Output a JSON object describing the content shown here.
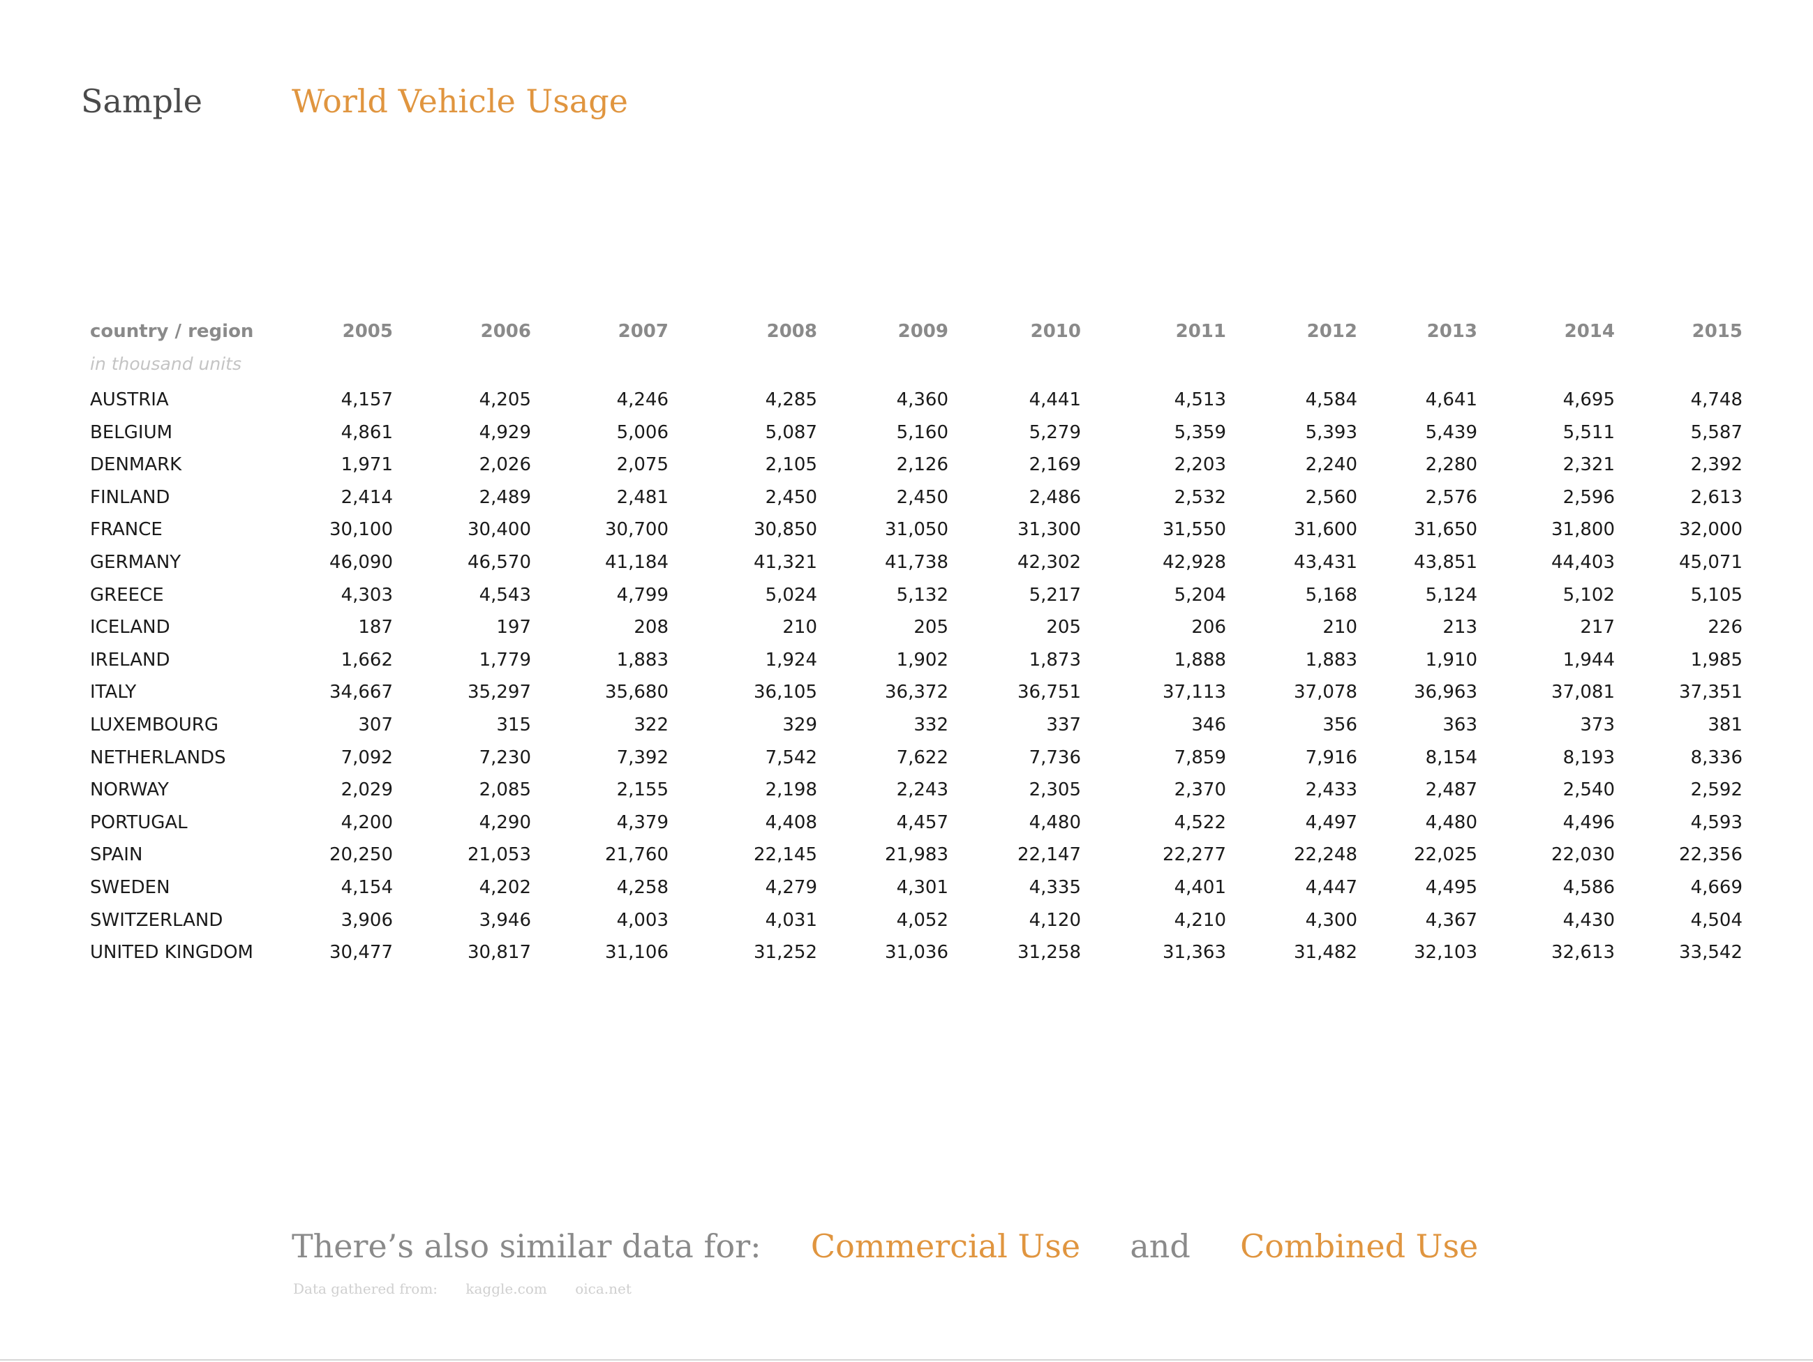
{
  "header": {
    "sample": "Sample",
    "title": "World Vehicle Usage"
  },
  "table": {
    "country_header": "country / region",
    "units": "in thousand units",
    "years": [
      "2005",
      "2006",
      "2007",
      "2008",
      "2009",
      "2010",
      "2011",
      "2012",
      "2013",
      "2014",
      "2015"
    ],
    "rows": [
      {
        "country": "AUSTRIA",
        "values": [
          "4,157",
          "4,205",
          "4,246",
          "4,285",
          "4,360",
          "4,441",
          "4,513",
          "4,584",
          "4,641",
          "4,695",
          "4,748"
        ]
      },
      {
        "country": "BELGIUM",
        "values": [
          "4,861",
          "4,929",
          "5,006",
          "5,087",
          "5,160",
          "5,279",
          "5,359",
          "5,393",
          "5,439",
          "5,511",
          "5,587"
        ]
      },
      {
        "country": "DENMARK",
        "values": [
          "1,971",
          "2,026",
          "2,075",
          "2,105",
          "2,126",
          "2,169",
          "2,203",
          "2,240",
          "2,280",
          "2,321",
          "2,392"
        ]
      },
      {
        "country": "FINLAND",
        "values": [
          "2,414",
          "2,489",
          "2,481",
          "2,450",
          "2,450",
          "2,486",
          "2,532",
          "2,560",
          "2,576",
          "2,596",
          "2,613"
        ]
      },
      {
        "country": "FRANCE",
        "values": [
          "30,100",
          "30,400",
          "30,700",
          "30,850",
          "31,050",
          "31,300",
          "31,550",
          "31,600",
          "31,650",
          "31,800",
          "32,000"
        ]
      },
      {
        "country": "GERMANY",
        "values": [
          "46,090",
          "46,570",
          "41,184",
          "41,321",
          "41,738",
          "42,302",
          "42,928",
          "43,431",
          "43,851",
          "44,403",
          "45,071"
        ]
      },
      {
        "country": "GREECE",
        "values": [
          "4,303",
          "4,543",
          "4,799",
          "5,024",
          "5,132",
          "5,217",
          "5,204",
          "5,168",
          "5,124",
          "5,102",
          "5,105"
        ]
      },
      {
        "country": "ICELAND",
        "values": [
          "187",
          "197",
          "208",
          "210",
          "205",
          "205",
          "206",
          "210",
          "213",
          "217",
          "226"
        ]
      },
      {
        "country": "IRELAND",
        "values": [
          "1,662",
          "1,779",
          "1,883",
          "1,924",
          "1,902",
          "1,873",
          "1,888",
          "1,883",
          "1,910",
          "1,944",
          "1,985"
        ]
      },
      {
        "country": "ITALY",
        "values": [
          "34,667",
          "35,297",
          "35,680",
          "36,105",
          "36,372",
          "36,751",
          "37,113",
          "37,078",
          "36,963",
          "37,081",
          "37,351"
        ]
      },
      {
        "country": "LUXEMBOURG",
        "values": [
          "307",
          "315",
          "322",
          "329",
          "332",
          "337",
          "346",
          "356",
          "363",
          "373",
          "381"
        ]
      },
      {
        "country": "NETHERLANDS",
        "values": [
          "7,092",
          "7,230",
          "7,392",
          "7,542",
          "7,622",
          "7,736",
          "7,859",
          "7,916",
          "8,154",
          "8,193",
          "8,336"
        ]
      },
      {
        "country": "NORWAY",
        "values": [
          "2,029",
          "2,085",
          "2,155",
          "2,198",
          "2,243",
          "2,305",
          "2,370",
          "2,433",
          "2,487",
          "2,540",
          "2,592"
        ]
      },
      {
        "country": "PORTUGAL",
        "values": [
          "4,200",
          "4,290",
          "4,379",
          "4,408",
          "4,457",
          "4,480",
          "4,522",
          "4,497",
          "4,480",
          "4,496",
          "4,593"
        ]
      },
      {
        "country": "SPAIN",
        "values": [
          "20,250",
          "21,053",
          "21,760",
          "22,145",
          "21,983",
          "22,147",
          "22,277",
          "22,248",
          "22,025",
          "22,030",
          "22,356"
        ]
      },
      {
        "country": "SWEDEN",
        "values": [
          "4,154",
          "4,202",
          "4,258",
          "4,279",
          "4,301",
          "4,335",
          "4,401",
          "4,447",
          "4,495",
          "4,586",
          "4,669"
        ]
      },
      {
        "country": "SWITZERLAND",
        "values": [
          "3,906",
          "3,946",
          "4,003",
          "4,031",
          "4,052",
          "4,120",
          "4,210",
          "4,300",
          "4,367",
          "4,430",
          "4,504"
        ]
      },
      {
        "country": "UNITED KINGDOM",
        "values": [
          "30,477",
          "30,817",
          "31,106",
          "31,252",
          "31,036",
          "31,258",
          "31,363",
          "31,482",
          "32,103",
          "32,613",
          "33,542"
        ]
      }
    ]
  },
  "footer": {
    "lead": "There’s also similar data for:",
    "link1": "Commercial Use",
    "conj": "and",
    "link2": "Combined Use",
    "sources_label": "Data gathered from:",
    "source1": "kaggle.com",
    "source2": "oica.net"
  },
  "colors": {
    "accent": "#e0953f",
    "heading_gray": "#8a8a8a",
    "units_gray": "#c4c4c4"
  }
}
